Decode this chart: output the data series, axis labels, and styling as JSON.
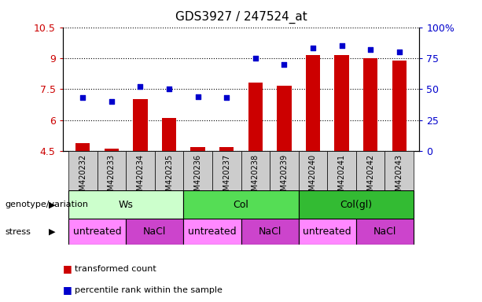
{
  "title": "GDS3927 / 247524_at",
  "samples": [
    "GSM420232",
    "GSM420233",
    "GSM420234",
    "GSM420235",
    "GSM420236",
    "GSM420237",
    "GSM420238",
    "GSM420239",
    "GSM420240",
    "GSM420241",
    "GSM420242",
    "GSM420243"
  ],
  "bar_values": [
    4.9,
    4.6,
    7.0,
    6.1,
    4.7,
    4.7,
    7.8,
    7.65,
    9.15,
    9.15,
    9.0,
    8.9
  ],
  "dot_values": [
    43,
    40,
    52,
    50,
    44,
    43,
    75,
    70,
    83,
    85,
    82,
    80
  ],
  "ylim_left": [
    4.5,
    10.5
  ],
  "ylim_right": [
    0,
    100
  ],
  "yticks_left": [
    4.5,
    6.0,
    7.5,
    9.0,
    10.5
  ],
  "yticks_right": [
    0,
    25,
    50,
    75,
    100
  ],
  "ytick_labels_left": [
    "4.5",
    "6",
    "7.5",
    "9",
    "10.5"
  ],
  "ytick_labels_right": [
    "0",
    "25",
    "50",
    "75",
    "100%"
  ],
  "bar_color": "#cc0000",
  "dot_color": "#0000cc",
  "bar_width": 0.5,
  "genotype_groups": [
    {
      "label": "Ws",
      "start": 0,
      "end": 3,
      "color": "#ccffcc"
    },
    {
      "label": "Col",
      "start": 4,
      "end": 7,
      "color": "#55dd55"
    },
    {
      "label": "Col(gl)",
      "start": 8,
      "end": 11,
      "color": "#33bb33"
    }
  ],
  "stress_groups": [
    {
      "label": "untreated",
      "start": 0,
      "end": 1,
      "color": "#ff88ff"
    },
    {
      "label": "NaCl",
      "start": 2,
      "end": 3,
      "color": "#cc44cc"
    },
    {
      "label": "untreated",
      "start": 4,
      "end": 5,
      "color": "#ff88ff"
    },
    {
      "label": "NaCl",
      "start": 6,
      "end": 7,
      "color": "#cc44cc"
    },
    {
      "label": "untreated",
      "start": 8,
      "end": 9,
      "color": "#ff88ff"
    },
    {
      "label": "NaCl",
      "start": 10,
      "end": 11,
      "color": "#cc44cc"
    }
  ],
  "legend_items": [
    {
      "label": "transformed count",
      "color": "#cc0000"
    },
    {
      "label": "percentile rank within the sample",
      "color": "#0000cc"
    }
  ],
  "left_label_color": "#cc0000",
  "right_label_color": "#0000cc",
  "sample_box_color": "#cccccc",
  "grid_linestyle": "dotted"
}
